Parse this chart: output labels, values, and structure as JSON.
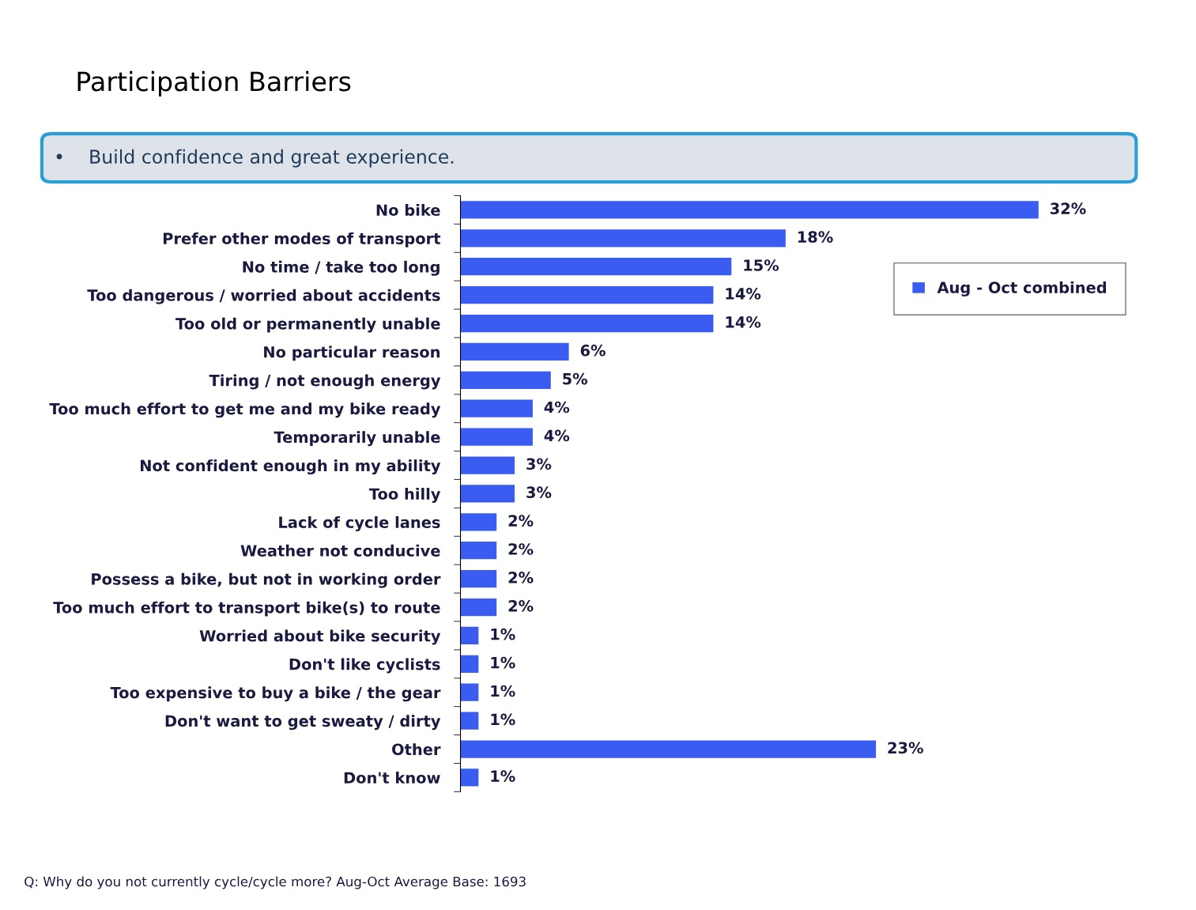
{
  "chart_data": {
    "type": "bar",
    "orientation": "horizontal",
    "title": "Participation Barriers",
    "subtitle": "•    Build confidence and great experience.",
    "categories": [
      "No bike",
      "Prefer other modes of transport",
      "No time / take too long",
      "Too dangerous / worried about accidents",
      "Too old or permanently unable",
      "No particular reason",
      "Tiring / not enough energy",
      "Too much effort to get me and my bike ready",
      "Temporarily unable",
      "Not confident enough in my ability",
      "Too hilly",
      "Lack of cycle lanes",
      "Weather not conducive",
      "Possess a bike, but not in working order",
      "Too much effort to transport bike(s) to route",
      "Worried about bike security",
      "Don't like cyclists",
      "Too expensive to buy a bike / the gear",
      "Don't want to get sweaty / dirty",
      "Other",
      "Don't know"
    ],
    "series": [
      {
        "name": "Aug - Oct combined",
        "color": "#3a5cf0",
        "values": [
          32,
          18,
          15,
          14,
          14,
          6,
          5,
          4,
          4,
          3,
          3,
          2,
          2,
          2,
          2,
          1,
          1,
          1,
          1,
          23,
          1
        ],
        "value_labels": [
          "32%",
          "18%",
          "15%",
          "14%",
          "14%",
          "6%",
          "5%",
          "4%",
          "4%",
          "3%",
          "3%",
          "2%",
          "2%",
          "2%",
          "2%",
          "1%",
          "1%",
          "1%",
          "1%",
          "23%",
          "1%"
        ]
      }
    ],
    "legend": "top right",
    "tick_labels": "y",
    "grid": false,
    "annotations": [
      "Q: Why do you not currently cycle/cycle more? Aug-Oct Average Base: 1693"
    ]
  }
}
